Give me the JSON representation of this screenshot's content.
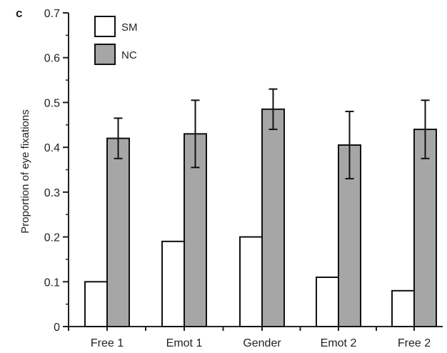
{
  "panel_label": "c",
  "chart_data": {
    "type": "bar",
    "ylabel": "Proportion of eye fixations",
    "xlabel": "",
    "ylim": [
      0,
      0.7
    ],
    "yticks": [
      0,
      0.1,
      0.2,
      0.3,
      0.4,
      0.5,
      0.6,
      0.7
    ],
    "ytick_labels": [
      "0",
      "0.1",
      "0.2",
      "0.3",
      "0.4",
      "0.5",
      "0.6",
      "0.7"
    ],
    "grid": false,
    "legend_position": "top-left",
    "categories": [
      "Free 1",
      "Emot 1",
      "Gender",
      "Emot 2",
      "Free 2"
    ],
    "series": [
      {
        "name": "SM",
        "color": "#ffffff",
        "values": [
          0.1,
          0.19,
          0.2,
          0.11,
          0.08
        ]
      },
      {
        "name": "NC",
        "color": "#a6a6a6",
        "values": [
          0.42,
          0.43,
          0.485,
          0.405,
          0.44
        ],
        "error": [
          0.045,
          0.075,
          0.045,
          0.075,
          0.065
        ]
      }
    ]
  }
}
